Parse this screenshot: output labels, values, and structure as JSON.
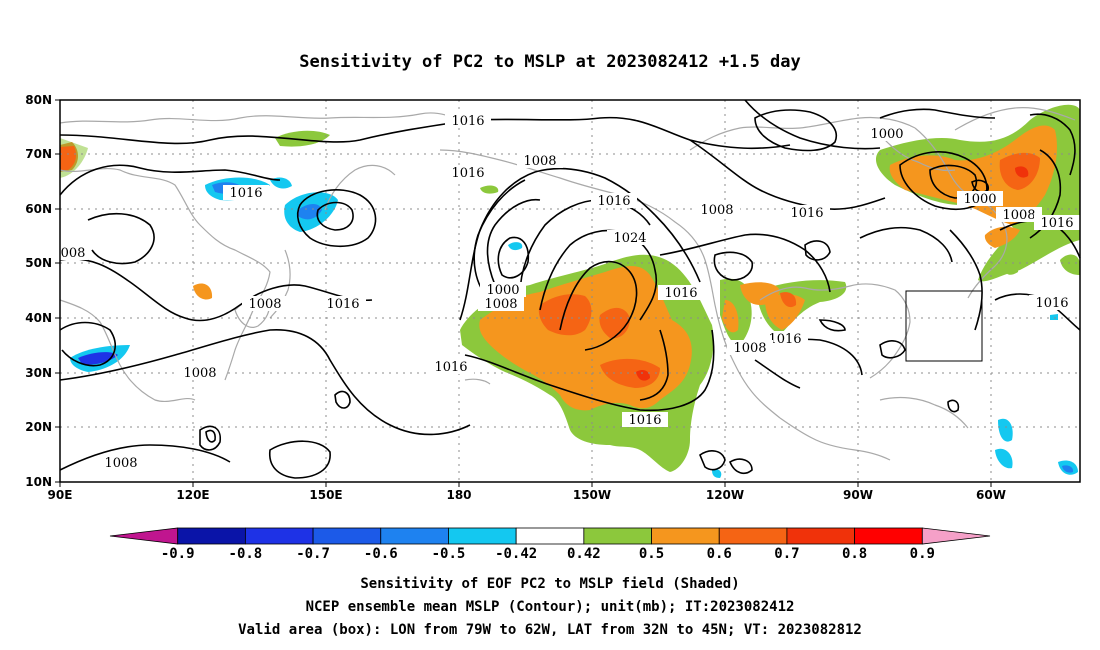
{
  "title": "Sensitivity of PC2 to MSLP at 2023082412 +1.5 day",
  "axes": {
    "lat_labels": [
      "80N",
      "70N",
      "60N",
      "50N",
      "40N",
      "30N",
      "20N",
      "10N"
    ],
    "lon_labels": [
      "90E",
      "120E",
      "150E",
      "180",
      "150W",
      "120W",
      "90W",
      "60W"
    ]
  },
  "colorbar": {
    "labels": [
      "-0.9",
      "-0.8",
      "-0.7",
      "-0.6",
      "-0.5",
      "-0.42",
      "0.42",
      "0.5",
      "0.6",
      "0.7",
      "0.8",
      "0.9"
    ],
    "colors": [
      "#c0158f",
      "#0a14a8",
      "#1e32e6",
      "#1c5ae8",
      "#1e82f0",
      "#14c8f0",
      "#ffffff",
      "#8cc83c",
      "#f5961e",
      "#f56414",
      "#f0320a",
      "#ff0000",
      "#f5a0c8"
    ]
  },
  "contour_labels": [
    "1016",
    "1016",
    "1008",
    "1016",
    "1000",
    "1016",
    "1008",
    "1016",
    "1000",
    "1008",
    "1016",
    "1024",
    "1016",
    "1000",
    "1008",
    "1016",
    "1008",
    "1016",
    "1008",
    "1016",
    "1016",
    "1008",
    "1008",
    "1016"
  ],
  "captions": [
    "Sensitivity of EOF PC2 to MSLP field (Shaded)",
    "NCEP ensemble mean MSLP (Contour); unit(mb); IT:2023082412",
    "Valid area (box): LON from 79W to 62W, LAT from 32N to 45N; VT: 2023082812"
  ],
  "valid_box": {
    "lon": [
      "79W",
      "62W"
    ],
    "lat": [
      "32N",
      "45N"
    ]
  }
}
